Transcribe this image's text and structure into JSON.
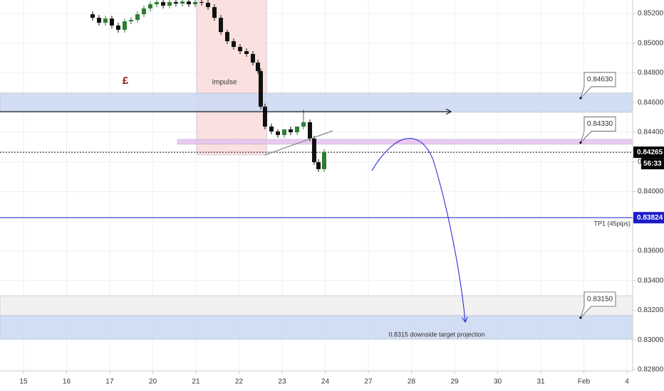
{
  "chart_data": {
    "type": "candlestick",
    "x": [
      1.603,
      1.752,
      1.901,
      2.05,
      2.198,
      2.347,
      2.496,
      2.645,
      2.793,
      2.942,
      3.091,
      3.24,
      3.388,
      3.537,
      3.686,
      3.835,
      3.983,
      4.132,
      4.281,
      4.43,
      4.579,
      4.727,
      4.876,
      5.025,
      5.174,
      5.322,
      5.438,
      5.504,
      5.603,
      5.752,
      5.901,
      6.05,
      6.198,
      6.347,
      6.496,
      6.645,
      6.744,
      6.843,
      6.975
    ],
    "open": [
      0.85195,
      0.85171,
      0.85138,
      0.85166,
      0.85119,
      0.8509,
      0.85147,
      0.85157,
      0.85195,
      0.85234,
      0.85262,
      0.85277,
      0.85253,
      0.85277,
      0.85267,
      0.85281,
      0.85262,
      0.85277,
      0.85272,
      0.85243,
      0.85171,
      0.85075,
      0.85013,
      0.84975,
      0.84946,
      0.84927,
      0.84869,
      0.84812,
      0.84572,
      0.84438,
      0.84405,
      0.84381,
      0.84419,
      0.844,
      0.84438,
      0.84467,
      0.84357,
      0.84198,
      0.84151
    ],
    "high": [
      0.85214,
      0.8519,
      0.85185,
      0.85185,
      0.85138,
      0.85166,
      0.85176,
      0.85214,
      0.85253,
      0.85281,
      0.85296,
      0.85296,
      0.85296,
      0.85296,
      0.85301,
      0.85301,
      0.85296,
      0.85296,
      0.85291,
      0.85262,
      0.8519,
      0.8509,
      0.85032,
      0.84994,
      0.84965,
      0.84946,
      0.84889,
      0.84831,
      0.84592,
      0.84458,
      0.84419,
      0.8441,
      0.84438,
      0.84438,
      0.84553,
      0.84486,
      0.84376,
      0.84218,
      0.84285
    ],
    "low": [
      0.85152,
      0.85119,
      0.85119,
      0.85099,
      0.85071,
      0.85071,
      0.85128,
      0.85138,
      0.85176,
      0.85214,
      0.85243,
      0.85234,
      0.85234,
      0.85248,
      0.85248,
      0.85243,
      0.85243,
      0.85253,
      0.85224,
      0.85152,
      0.85056,
      0.84994,
      0.84956,
      0.84927,
      0.84908,
      0.8485,
      0.84793,
      0.84553,
      0.84419,
      0.84386,
      0.84362,
      0.84362,
      0.84381,
      0.84381,
      0.84419,
      0.84338,
      0.8418,
      0.84132,
      0.84132
    ],
    "close": [
      0.85171,
      0.85138,
      0.85166,
      0.85119,
      0.8509,
      0.85147,
      0.85157,
      0.85195,
      0.85234,
      0.85262,
      0.85277,
      0.85253,
      0.85277,
      0.85267,
      0.85281,
      0.85262,
      0.85277,
      0.85272,
      0.85243,
      0.85171,
      0.85075,
      0.85013,
      0.84975,
      0.84946,
      0.84927,
      0.84869,
      0.84812,
      0.84572,
      0.84438,
      0.84405,
      0.84381,
      0.84419,
      0.844,
      0.84438,
      0.84467,
      0.84357,
      0.84198,
      0.84151,
      0.84266
    ],
    "up_color": "#2e7d32",
    "down_color": "#111111",
    "xlim": [
      -0.545,
      14.132
    ],
    "ylim": [
      0.8279,
      0.85291
    ],
    "grid": true,
    "xticks": [
      {
        "value": 0,
        "label": "15"
      },
      {
        "value": 1,
        "label": "16"
      },
      {
        "value": 2,
        "label": "17"
      },
      {
        "value": 3,
        "label": "20"
      },
      {
        "value": 4,
        "label": "21"
      },
      {
        "value": 5,
        "label": "22"
      },
      {
        "value": 6,
        "label": "23"
      },
      {
        "value": 7,
        "label": "24"
      },
      {
        "value": 8,
        "label": "27"
      },
      {
        "value": 9,
        "label": "28"
      },
      {
        "value": 10,
        "label": "29"
      },
      {
        "value": 11,
        "label": "30"
      },
      {
        "value": 12,
        "label": "31"
      },
      {
        "value": 13,
        "label": "Feb"
      },
      {
        "value": 14,
        "label": "4"
      }
    ],
    "yticks": [
      {
        "value": 0.852,
        "label": "0.85200"
      },
      {
        "value": 0.85,
        "label": "0.85000"
      },
      {
        "value": 0.848,
        "label": "0.84800"
      },
      {
        "value": 0.846,
        "label": "0.84600"
      },
      {
        "value": 0.844,
        "label": "0.84400"
      },
      {
        "value": 0.842,
        "label": "0.84200"
      },
      {
        "value": 0.84,
        "label": "0.84000"
      },
      {
        "value": 0.838,
        "label": "0.83800"
      },
      {
        "value": 0.836,
        "label": "0.83600"
      },
      {
        "value": 0.834,
        "label": "0.83400"
      },
      {
        "value": 0.832,
        "label": "0.83200"
      },
      {
        "value": 0.83,
        "label": "0.83000"
      },
      {
        "value": 0.828,
        "label": "0.82800"
      }
    ],
    "zones": [
      {
        "y": [
          0.84247,
          0.853
        ],
        "x": [
          4.02,
          5.64
        ],
        "color": "#fadada"
      },
      {
        "y": [
          0.84534,
          0.84664
        ],
        "color": "#c9d8f2"
      },
      {
        "y": [
          0.84319,
          0.84352
        ],
        "x": [
          3.57,
          14.132
        ],
        "color": "#e6bfee"
      },
      {
        "y": [
          0.83164,
          0.83298
        ],
        "color": "#efefef"
      },
      {
        "y": [
          0.83006,
          0.83164
        ],
        "color": "#c9d8f2"
      }
    ],
    "levels": [
      {
        "value": 0.84265,
        "label": "0.84265",
        "color": "#000000",
        "dash": "2,2"
      },
      {
        "value": 0.83824,
        "label": "0.83824",
        "color": "#1c1ccc"
      }
    ],
    "countdown": "56:33",
    "callouts": [
      {
        "value": 0.8463,
        "label": "0.84630"
      },
      {
        "value": 0.8433,
        "label": "0.84330"
      },
      {
        "value": 0.8315,
        "label": "0.83150"
      }
    ],
    "annotations": {
      "impulse": "Impulse",
      "currency": "£",
      "tp1": "TP1 (45pips)",
      "projection": "0.8315 downside target projection"
    }
  }
}
